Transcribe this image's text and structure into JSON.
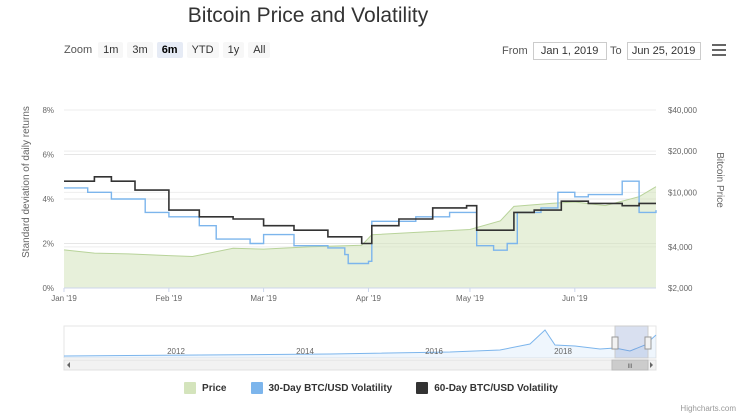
{
  "title": "Bitcoin Price and Volatility",
  "range_selector": {
    "zoom_label": "Zoom",
    "buttons": [
      "1m",
      "3m",
      "6m",
      "YTD",
      "1y",
      "All"
    ],
    "selected": "6m",
    "from_label": "From",
    "from_value": "Jan 1, 2019",
    "to_label": "To",
    "to_value": "Jun 25, 2019"
  },
  "menu_icon": "hamburger-menu-icon",
  "legend": [
    {
      "name": "Price",
      "color": "#d4e4bc"
    },
    {
      "name": "30-Day BTC/USD Volatility",
      "color": "#7cb5ec"
    },
    {
      "name": "60-Day BTC/USD Volatility",
      "color": "#333333"
    }
  ],
  "credits": "Highcharts.com",
  "navigator": {
    "year_labels": [
      "2012",
      "2014",
      "2016",
      "2018"
    ],
    "scroll_label": "III"
  },
  "chart_data": {
    "type": "line",
    "title": "Bitcoin Price and Volatility",
    "x_ticks": [
      "Jan '19",
      "Feb '19",
      "Mar '19",
      "Apr '19",
      "May '19",
      "Jun '19"
    ],
    "y_left": {
      "label": "Standard deviation of daily returns",
      "ticks": [
        "0%",
        "2%",
        "4%",
        "6%",
        "8%"
      ],
      "range": [
        0,
        8
      ]
    },
    "y_right": {
      "label": "Bitcoin Price",
      "ticks": [
        "$2,000",
        "$4,000",
        "$10,000",
        "$20,000",
        "$40,000"
      ],
      "scale": "log",
      "range": [
        2000,
        40000
      ]
    },
    "series": [
      {
        "name": "Price",
        "type": "area",
        "axis": "right",
        "color": "#d4e4bc",
        "x": [
          "2019-01-01",
          "2019-01-10",
          "2019-01-20",
          "2019-02-01",
          "2019-02-08",
          "2019-02-20",
          "2019-03-01",
          "2019-03-15",
          "2019-03-30",
          "2019-04-02",
          "2019-04-15",
          "2019-05-01",
          "2019-05-10",
          "2019-05-14",
          "2019-05-25",
          "2019-06-01",
          "2019-06-10",
          "2019-06-20",
          "2019-06-25"
        ],
        "values": [
          3800,
          3600,
          3550,
          3450,
          3400,
          3900,
          3850,
          4000,
          4100,
          4900,
          5100,
          5350,
          6200,
          7900,
          8300,
          8500,
          8000,
          9300,
          11000
        ]
      },
      {
        "name": "30-Day BTC/USD Volatility",
        "type": "line",
        "axis": "left",
        "color": "#7cb5ec",
        "x": [
          "2019-01-01",
          "2019-01-08",
          "2019-01-15",
          "2019-01-25",
          "2019-02-01",
          "2019-02-10",
          "2019-02-15",
          "2019-02-25",
          "2019-03-01",
          "2019-03-10",
          "2019-03-20",
          "2019-03-25",
          "2019-03-26",
          "2019-04-01",
          "2019-04-02",
          "2019-04-15",
          "2019-04-25",
          "2019-04-30",
          "2019-05-03",
          "2019-05-08",
          "2019-05-12",
          "2019-05-15",
          "2019-05-22",
          "2019-05-27",
          "2019-06-01",
          "2019-06-05",
          "2019-06-15",
          "2019-06-20",
          "2019-06-25"
        ],
        "values": [
          4.5,
          4.3,
          4.0,
          3.4,
          3.2,
          2.8,
          2.2,
          2.0,
          2.4,
          1.9,
          1.8,
          1.5,
          1.1,
          1.2,
          3.0,
          3.2,
          3.4,
          3.4,
          1.9,
          1.7,
          2.0,
          3.4,
          3.6,
          4.3,
          4.1,
          4.2,
          4.8,
          3.4,
          3.5
        ]
      },
      {
        "name": "60-Day BTC/USD Volatility",
        "type": "line",
        "axis": "left",
        "color": "#333333",
        "x": [
          "2019-01-01",
          "2019-01-10",
          "2019-01-15",
          "2019-01-22",
          "2019-02-01",
          "2019-02-10",
          "2019-02-20",
          "2019-03-01",
          "2019-03-10",
          "2019-03-20",
          "2019-03-30",
          "2019-04-02",
          "2019-04-10",
          "2019-04-20",
          "2019-04-30",
          "2019-05-03",
          "2019-05-12",
          "2019-05-14",
          "2019-05-20",
          "2019-05-28",
          "2019-06-05",
          "2019-06-15",
          "2019-06-20",
          "2019-06-25"
        ],
        "values": [
          4.8,
          5.0,
          4.8,
          4.4,
          3.5,
          3.2,
          3.1,
          2.8,
          2.6,
          2.3,
          2.0,
          2.8,
          3.1,
          3.6,
          3.7,
          2.6,
          2.6,
          3.4,
          3.5,
          3.9,
          3.8,
          3.7,
          3.8,
          3.8
        ]
      }
    ]
  }
}
